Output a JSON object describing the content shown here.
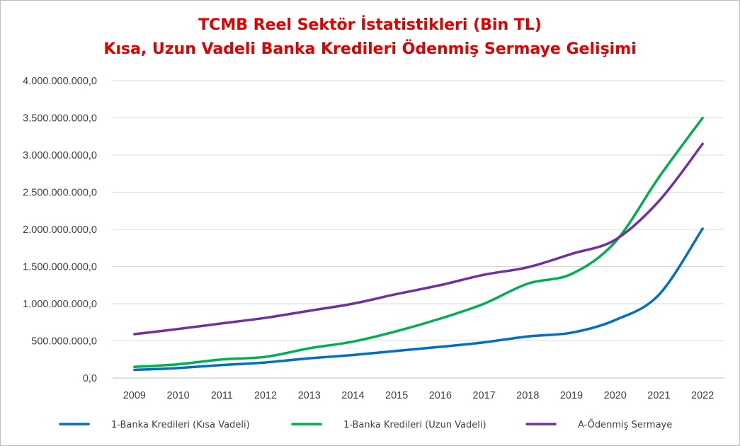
{
  "chart_data": {
    "type": "line",
    "title_line1": "TCMB Reel Sektör İstatistikleri (Bin TL)",
    "title_line2": "Kısa, Uzun Vadeli Banka Kredileri Ödenmiş Sermaye Gelişimi",
    "xlabel": "",
    "ylabel": "",
    "ylim": [
      0,
      4000000000
    ],
    "grid": true,
    "legend_position": "bottom",
    "x": [
      "2009",
      "2010",
      "2011",
      "2012",
      "2013",
      "2014",
      "2015",
      "2016",
      "2017",
      "2018",
      "2019",
      "2020",
      "2021",
      "2022"
    ],
    "y_ticks": [
      {
        "value": 0,
        "label": "0,0"
      },
      {
        "value": 500000000,
        "label": "500.000.000,0"
      },
      {
        "value": 1000000000,
        "label": "1.000.000.000,0"
      },
      {
        "value": 1500000000,
        "label": "1.500.000.000,0"
      },
      {
        "value": 2000000000,
        "label": "2.000.000.000,0"
      },
      {
        "value": 2500000000,
        "label": "2.500.000.000,0"
      },
      {
        "value": 3000000000,
        "label": "3.000.000.000,0"
      },
      {
        "value": 3500000000,
        "label": "3.500.000.000,0"
      },
      {
        "value": 4000000000,
        "label": "4.000.000.000,0"
      }
    ],
    "series": [
      {
        "name": "1-Banka Kredileri (Kısa Vadeli)",
        "color": "#0070c0",
        "values": [
          110000000,
          135000000,
          175000000,
          210000000,
          265000000,
          310000000,
          365000000,
          420000000,
          480000000,
          560000000,
          610000000,
          780000000,
          1120000000,
          2010000000
        ]
      },
      {
        "name": "1-Banka Kredileri (Uzun Vadeli)",
        "color": "#00b050",
        "values": [
          150000000,
          185000000,
          250000000,
          285000000,
          400000000,
          490000000,
          630000000,
          800000000,
          1000000000,
          1270000000,
          1400000000,
          1830000000,
          2700000000,
          3500000000
        ]
      },
      {
        "name": "A-Ödenmiş Sermaye",
        "color": "#7030a0",
        "values": [
          590000000,
          660000000,
          735000000,
          810000000,
          905000000,
          1000000000,
          1130000000,
          1250000000,
          1390000000,
          1490000000,
          1670000000,
          1860000000,
          2380000000,
          3150000000
        ]
      }
    ]
  }
}
